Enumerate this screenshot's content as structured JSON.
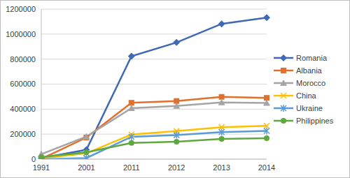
{
  "chart_data": {
    "type": "line",
    "categories": [
      "1991",
      "2001",
      "2011",
      "2012",
      "2013",
      "2014"
    ],
    "ylim": [
      0,
      1200000
    ],
    "yticks": [
      0,
      200000,
      400000,
      600000,
      800000,
      1000000,
      1200000
    ],
    "grid": true,
    "legend": "right",
    "series": [
      {
        "name": "Romania",
        "color": "#3F68B5",
        "marker": "diamond",
        "values": [
          8000,
          75000,
          823000,
          933000,
          1082000,
          1131000
        ]
      },
      {
        "name": "Albania",
        "color": "#E0702E",
        "marker": "square",
        "values": [
          2000,
          173000,
          451000,
          465000,
          498000,
          490000
        ]
      },
      {
        "name": "Morocco",
        "color": "#A5A5A5",
        "marker": "triangle",
        "values": [
          40000,
          180000,
          408000,
          426000,
          454000,
          449000
        ]
      },
      {
        "name": "China",
        "color": "#FFC000",
        "marker": "x",
        "values": [
          6000,
          47000,
          197000,
          224000,
          256000,
          266000
        ]
      },
      {
        "name": "Ukraine",
        "color": "#5B9BD5",
        "marker": "star",
        "values": [
          0,
          9000,
          179000,
          192000,
          216000,
          226000
        ]
      },
      {
        "name": "Philippines",
        "color": "#5FA83F",
        "marker": "circle",
        "values": [
          17000,
          54000,
          130000,
          139000,
          162000,
          168000
        ]
      }
    ]
  }
}
